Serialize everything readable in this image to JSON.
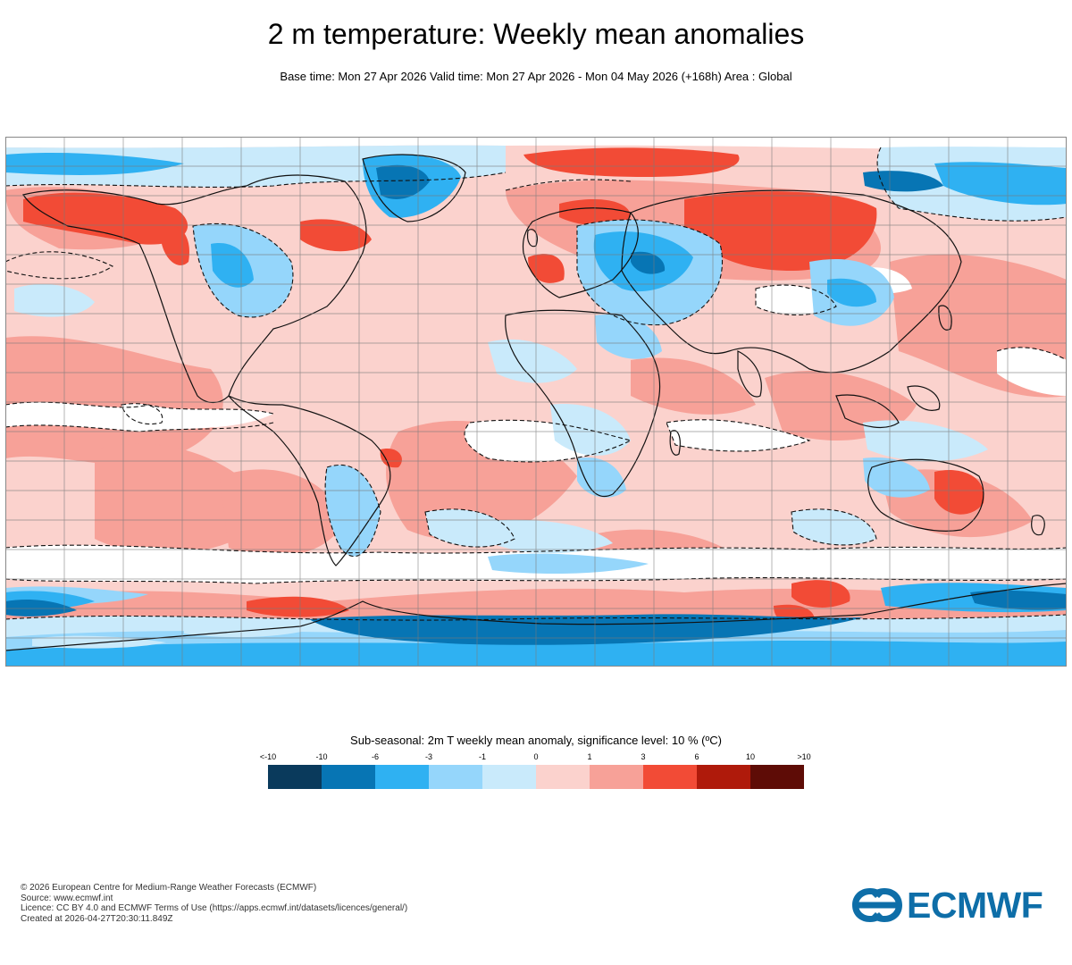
{
  "header": {
    "title": "2 m temperature: Weekly mean anomalies",
    "subtitle": "Base time: Mon 27 Apr 2026 Valid time: Mon 27 Apr 2026 - Mon 04 May 2026 (+168h) Area : Global"
  },
  "legend": {
    "title": "Sub-seasonal: 2m T weekly mean anomaly, significance level: 10 % (ºC)",
    "labels": [
      "<-10",
      "-10",
      "-6",
      "-3",
      "-1",
      "0",
      "1",
      "3",
      "6",
      "10",
      ">10"
    ],
    "colors": [
      "#0a3a5c",
      "#0775b4",
      "#2fb1f2",
      "#95d6fb",
      "#c9eafb",
      "#fbd2cd",
      "#f7a198",
      "#f24b36",
      "#af1a0b",
      "#5e0c06"
    ]
  },
  "map": {
    "area": "Global",
    "grid": true,
    "colors": {
      "ocean_warm_light": "#fbd2cd",
      "warm_medium": "#f7a198",
      "warm_strong": "#f24b36",
      "cold_light": "#c9eafb",
      "cold_medium": "#95d6fb",
      "cold_strong": "#2fb1f2",
      "cold_deep": "#0775b4",
      "neutral": "#ffffff",
      "coastline": "#111111",
      "gridline": "#7a7a7a"
    }
  },
  "credits": {
    "lines": [
      "© 2026 European Centre for Medium-Range Weather Forecasts (ECMWF)",
      "Source: www.ecmwf.int",
      "Licence: CC BY 4.0 and ECMWF Terms of Use (https://apps.ecmwf.int/datasets/licences/general/)",
      "Created at 2026-04-27T20:30:11.849Z"
    ]
  },
  "logo": {
    "text": "ECMWF",
    "icon": "ecmwf-logo-icon"
  }
}
